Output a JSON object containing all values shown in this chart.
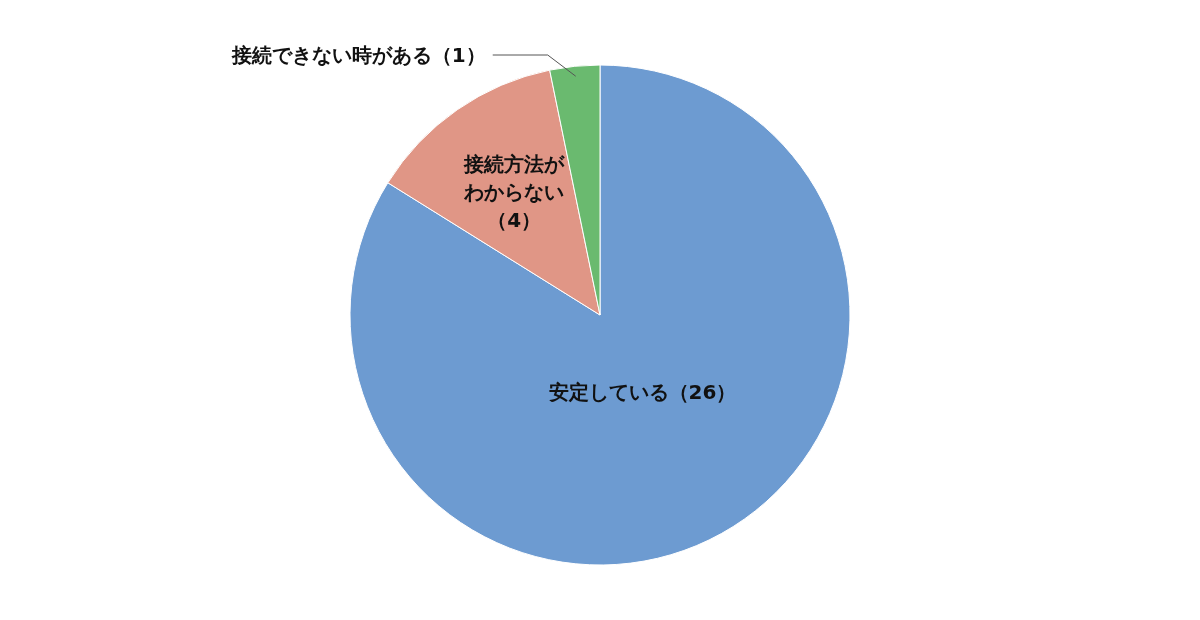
{
  "chart_data": {
    "type": "pie",
    "categories": [
      "安定している",
      "接続方法がわからない",
      "接続できない時がある"
    ],
    "values": [
      26,
      4,
      1
    ],
    "colors": [
      "#6d9bd1",
      "#e09686",
      "#6aba6f"
    ],
    "value_labels": [
      "（26）",
      "（4）",
      "（1）"
    ]
  }
}
